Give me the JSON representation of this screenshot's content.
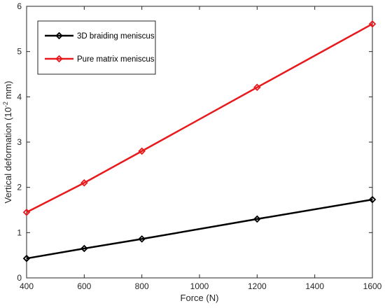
{
  "chart_data": {
    "type": "line",
    "title": "",
    "xlabel": "Force   (N)",
    "ylabel_main": "Vertical deformation  (10",
    "ylabel_sup": "-2",
    "ylabel_unit": " mm)",
    "xlim": [
      400,
      1600
    ],
    "ylim": [
      0,
      6
    ],
    "xticks": [
      400,
      600,
      800,
      1000,
      1200,
      1400,
      1600
    ],
    "yticks": [
      0,
      1,
      2,
      3,
      4,
      5,
      6
    ],
    "grid": false,
    "legend_position": "top-left",
    "series": [
      {
        "name": "3D braiding meniscus",
        "color": "#000000",
        "marker": "diamond",
        "x": [
          400,
          600,
          800,
          1200,
          1600
        ],
        "y": [
          0.43,
          0.65,
          0.86,
          1.3,
          1.73
        ]
      },
      {
        "name": "Pure matrix meniscus",
        "color": "#e8191c",
        "marker": "diamond",
        "x": [
          400,
          600,
          800,
          1200,
          1600
        ],
        "y": [
          1.45,
          2.1,
          2.8,
          4.21,
          5.61
        ]
      }
    ]
  }
}
